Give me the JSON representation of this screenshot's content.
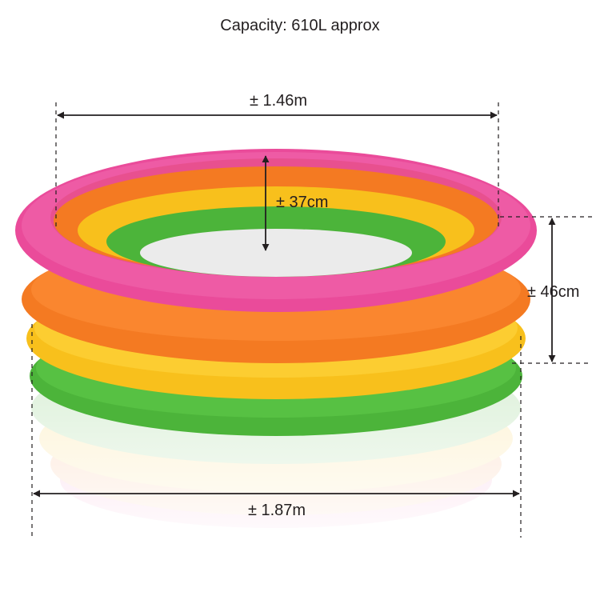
{
  "caption": "Capacity: 610L approx",
  "dimensions": {
    "inner_diameter": "± 1.46m",
    "inner_depth": "± 37cm",
    "outer_height": "± 46cm",
    "outer_diameter": "± 1.87m"
  },
  "colors": {
    "ring_pink": "#ea4b9a",
    "ring_orange": "#f47a22",
    "ring_yellow": "#f8c01c",
    "ring_green": "#4cb43a",
    "floor": "#ebebeb",
    "dimension_line": "#231f20"
  },
  "rings_top_to_bottom": [
    "pink",
    "orange",
    "yellow",
    "green"
  ]
}
